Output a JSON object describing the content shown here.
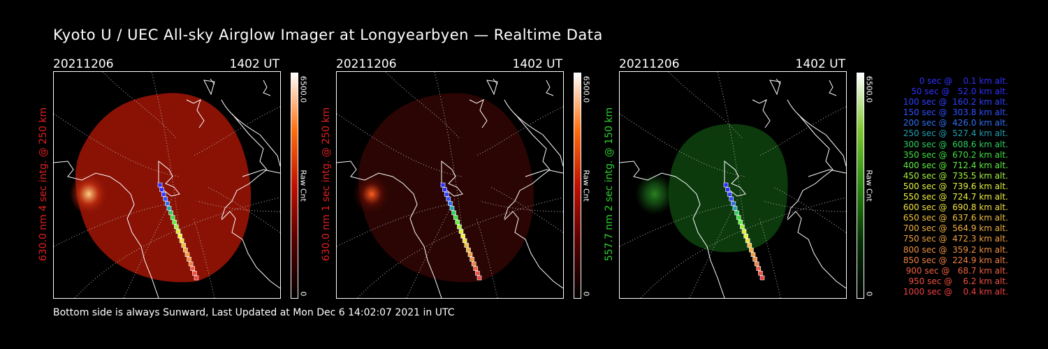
{
  "title": "Kyoto U / UEC All-sky Airglow Imager at Longyearbyen — Realtime Data",
  "footer": "Bottom side is always Sunward, Last Updated at Mon Dec  6 14:02:07 2021 in UTC",
  "panels": [
    {
      "date": "20211206",
      "time": "1402 UT",
      "ylabel": "630.0 nm 4 sec intg. @ 250 km",
      "label_color": "#e02020",
      "cb_max": "6500.0",
      "cb_min": "0",
      "cb_label": "Raw Cnt"
    },
    {
      "date": "20211206",
      "time": "1402 UT",
      "ylabel": "630.0 nm 1 sec intg. @ 250 km",
      "label_color": "#e02020",
      "cb_max": "6500.0",
      "cb_min": "0",
      "cb_label": "Raw Cnt"
    },
    {
      "date": "20211206",
      "time": "1402 UT",
      "ylabel": "557.7 nm 2 sec intg. @ 150 km",
      "label_color": "#30d030",
      "cb_max": "6500.0",
      "cb_min": "0",
      "cb_label": "Raw Cnt"
    }
  ],
  "legend": [
    {
      "text": "0 sec @    0.1 km alt.",
      "color": "#3030ff"
    },
    {
      "text": "50 sec @   52.0 km alt.",
      "color": "#3030ff"
    },
    {
      "text": "100 sec @  160.2 km alt.",
      "color": "#3040ff"
    },
    {
      "text": "150 sec @  303.8 km alt.",
      "color": "#3050ff"
    },
    {
      "text": "200 sec @  426.0 km alt.",
      "color": "#3070f0"
    },
    {
      "text": "250 sec @  527.4 km alt.",
      "color": "#20a0b0"
    },
    {
      "text": "300 sec @  608.6 km alt.",
      "color": "#30d060"
    },
    {
      "text": "350 sec @  670.2 km alt.",
      "color": "#40e040"
    },
    {
      "text": "400 sec @  712.4 km alt.",
      "color": "#60f040"
    },
    {
      "text": "450 sec @  735.5 km alt.",
      "color": "#a0f040"
    },
    {
      "text": "500 sec @  739.6 km alt.",
      "color": "#e0f040"
    },
    {
      "text": "550 sec @  724.7 km alt.",
      "color": "#f0f040"
    },
    {
      "text": "600 sec @  690.8 km alt.",
      "color": "#f0e040"
    },
    {
      "text": "650 sec @  637.6 km alt.",
      "color": "#f0c040"
    },
    {
      "text": "700 sec @  564.9 km alt.",
      "color": "#f0b040"
    },
    {
      "text": "750 sec @  472.3 km alt.",
      "color": "#f0a040"
    },
    {
      "text": "800 sec @  359.2 km alt.",
      "color": "#f09040"
    },
    {
      "text": "850 sec @  224.9 km alt.",
      "color": "#f08040"
    },
    {
      "text": "900 sec @   68.7 km alt.",
      "color": "#f06040"
    },
    {
      "text": "950 sec @    6.2 km alt.",
      "color": "#f05040"
    },
    {
      "text": "1000 sec @    0.4 km alt.",
      "color": "#f04040"
    }
  ]
}
